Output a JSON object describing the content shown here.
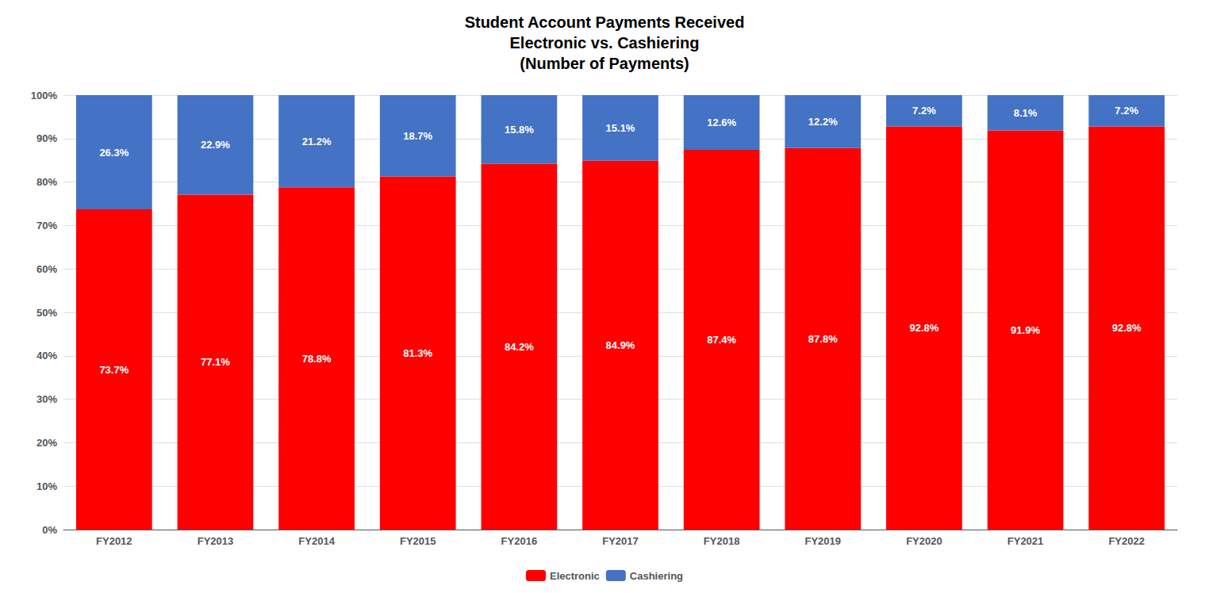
{
  "chart_data": {
    "type": "bar",
    "title": "Student Account Payments Received\nElectronic vs. Cashiering\n(Number of Payments)",
    "categories": [
      "FY2012",
      "FY2013",
      "FY2014",
      "FY2015",
      "FY2016",
      "FY2017",
      "FY2018",
      "FY2019",
      "FY2020",
      "FY2021",
      "FY2022"
    ],
    "series": [
      {
        "name": "Electronic",
        "color": "#FF0000",
        "values": [
          73.7,
          77.1,
          78.8,
          81.3,
          84.2,
          84.9,
          87.4,
          87.8,
          92.8,
          91.9,
          92.8
        ],
        "value_labels": [
          "73.7%",
          "77.1%",
          "78.8%",
          "81.3%",
          "84.2%",
          "84.9%",
          "87.4%",
          "87.8%",
          "92.8%",
          "91.9%",
          "92.8%"
        ]
      },
      {
        "name": "Cashiering",
        "color": "#4472C4",
        "values": [
          26.3,
          22.9,
          21.2,
          18.7,
          15.8,
          15.1,
          12.6,
          12.2,
          7.2,
          8.1,
          7.2
        ],
        "value_labels": [
          "26.3%",
          "22.9%",
          "21.2%",
          "18.7%",
          "15.8%",
          "15.1%",
          "12.6%",
          "12.2%",
          "7.2%",
          "8.1%",
          "7.2%"
        ]
      }
    ],
    "stacked": true,
    "data_labels": true,
    "ylim": [
      0,
      100
    ],
    "yticks": [
      {
        "value": 0,
        "label": "0%"
      },
      {
        "value": 10,
        "label": "10%"
      },
      {
        "value": 20,
        "label": "20%"
      },
      {
        "value": 30,
        "label": "30%"
      },
      {
        "value": 40,
        "label": "40%"
      },
      {
        "value": 50,
        "label": "50%"
      },
      {
        "value": 60,
        "label": "60%"
      },
      {
        "value": 70,
        "label": "70%"
      },
      {
        "value": 80,
        "label": "80%"
      },
      {
        "value": 90,
        "label": "90%"
      },
      {
        "value": 100,
        "label": "100%"
      }
    ],
    "grid": true,
    "legend": "bottom"
  }
}
